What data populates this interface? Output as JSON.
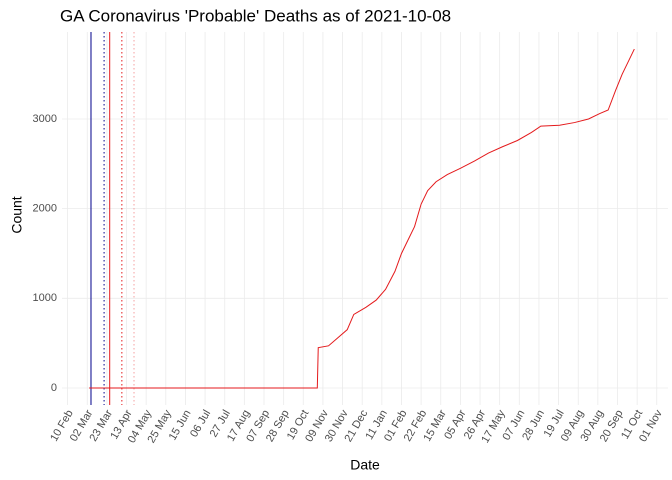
{
  "chart_data": {
    "type": "line",
    "title": "GA Coronavirus 'Probable' Deaths as of 2021-10-08",
    "x_label": "Date",
    "y_label": "Count",
    "x": [
      "2020-03-04",
      "2020-11-03",
      "2020-11-04",
      "2020-11-15",
      "2020-11-25",
      "2020-12-05",
      "2020-12-12",
      "2020-12-25",
      "2021-01-05",
      "2021-01-15",
      "2021-01-25",
      "2021-02-01",
      "2021-02-08",
      "2021-02-15",
      "2021-02-22",
      "2021-03-01",
      "2021-03-10",
      "2021-03-22",
      "2021-04-05",
      "2021-04-20",
      "2021-05-05",
      "2021-05-20",
      "2021-06-05",
      "2021-06-20",
      "2021-06-30",
      "2021-07-20",
      "2021-08-05",
      "2021-08-20",
      "2021-09-01",
      "2021-09-10",
      "2021-09-18",
      "2021-09-25",
      "2021-10-02",
      "2021-10-08"
    ],
    "series": [
      {
        "color": "#e41a1c",
        "values": [
          0,
          0,
          450,
          470,
          560,
          650,
          820,
          900,
          980,
          1100,
          1300,
          1500,
          1650,
          1800,
          2050,
          2200,
          2300,
          2380,
          2450,
          2530,
          2620,
          2690,
          2760,
          2850,
          2920,
          2930,
          2960,
          3000,
          3060,
          3100,
          3320,
          3500,
          3650,
          3780
        ]
      }
    ],
    "vlines": [
      {
        "x": "2020-03-06",
        "color": "#00008b",
        "dash": "solid"
      },
      {
        "x": "2020-03-20",
        "color": "#00008b",
        "dash": "dotted"
      },
      {
        "x": "2020-03-26",
        "color": "#e41a1c",
        "dash": "solid"
      },
      {
        "x": "2020-04-08",
        "color": "#e41a1c",
        "dash": "dotted"
      },
      {
        "x": "2020-04-21",
        "color": "#f4a0a0",
        "dash": "dotted"
      }
    ],
    "xlim": [
      "2020-02-04",
      "2021-11-13"
    ],
    "xticks": [
      {
        "value": "2020-02-10",
        "label": "10 Feb"
      },
      {
        "value": "2020-03-02",
        "label": "02 Mar"
      },
      {
        "value": "2020-03-23",
        "label": "23 Mar"
      },
      {
        "value": "2020-04-13",
        "label": "13 Apr"
      },
      {
        "value": "2020-05-04",
        "label": "04 May"
      },
      {
        "value": "2020-05-25",
        "label": "25 May"
      },
      {
        "value": "2020-06-15",
        "label": "15 Jun"
      },
      {
        "value": "2020-07-06",
        "label": "06 Jul"
      },
      {
        "value": "2020-07-27",
        "label": "27 Jul"
      },
      {
        "value": "2020-08-17",
        "label": "17 Aug"
      },
      {
        "value": "2020-09-07",
        "label": "07 Sep"
      },
      {
        "value": "2020-09-28",
        "label": "28 Sep"
      },
      {
        "value": "2020-10-19",
        "label": "19 Oct"
      },
      {
        "value": "2020-11-09",
        "label": "09 Nov"
      },
      {
        "value": "2020-11-30",
        "label": "30 Nov"
      },
      {
        "value": "2020-12-21",
        "label": "21 Dec"
      },
      {
        "value": "2021-01-11",
        "label": "11 Jan"
      },
      {
        "value": "2021-02-01",
        "label": "01 Feb"
      },
      {
        "value": "2021-02-22",
        "label": "22 Feb"
      },
      {
        "value": "2021-03-15",
        "label": "15 Mar"
      },
      {
        "value": "2021-04-05",
        "label": "05 Apr"
      },
      {
        "value": "2021-04-26",
        "label": "26 Apr"
      },
      {
        "value": "2021-05-17",
        "label": "17 May"
      },
      {
        "value": "2021-06-07",
        "label": "07 Jun"
      },
      {
        "value": "2021-06-28",
        "label": "28 Jun"
      },
      {
        "value": "2021-07-19",
        "label": "19 Jul"
      },
      {
        "value": "2021-08-09",
        "label": "09 Aug"
      },
      {
        "value": "2021-08-30",
        "label": "30 Aug"
      },
      {
        "value": "2021-09-20",
        "label": "20 Sep"
      },
      {
        "value": "2021-10-11",
        "label": "11 Oct"
      },
      {
        "value": "2021-11-01",
        "label": "01 Nov"
      }
    ],
    "ylim": [
      -190,
      3970
    ],
    "yticks": [
      0,
      1000,
      2000,
      3000
    ],
    "grid": true
  }
}
